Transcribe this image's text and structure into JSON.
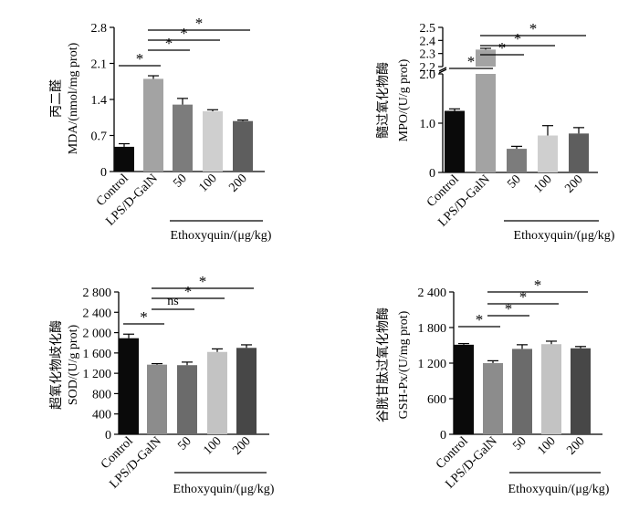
{
  "chart_data": [
    {
      "type": "bar",
      "ylabel_lines": [
        "丙二醛",
        "MDA/(nmol/mg prot)"
      ],
      "categories": [
        "Control",
        "LPS/D-GalN",
        "50",
        "100",
        "200"
      ],
      "group_label": "Ethoxyquin/(μg/kg)",
      "values": [
        0.48,
        1.8,
        1.3,
        1.17,
        0.98
      ],
      "errors": [
        0.06,
        0.06,
        0.12,
        0.03,
        0.02
      ],
      "colors": [
        "#0a0a0a",
        "#a3a3a3",
        "#7c7c7c",
        "#cfcfcf",
        "#5e5e5e"
      ],
      "ylim": [
        0,
        2.8
      ],
      "yticks": [
        0,
        0.7,
        1.4,
        2.1,
        2.8
      ],
      "ytick_labels": [
        "0",
        "0.7",
        "1.4",
        "2.1",
        "2.8"
      ],
      "significance": [
        {
          "from": 0,
          "to": 1,
          "label": "*"
        },
        {
          "from": 1,
          "to": 2,
          "label": "*"
        },
        {
          "from": 1,
          "to": 3,
          "label": "*"
        },
        {
          "from": 1,
          "to": 4,
          "label": "*"
        }
      ]
    },
    {
      "type": "bar",
      "ylabel_lines": [
        "髓过氧化物酶",
        "MPO/(U/g prot)"
      ],
      "categories": [
        "Control",
        "LPS/D-GalN",
        "50",
        "100",
        "200"
      ],
      "group_label": "Ethoxyquin/(μg/kg)",
      "values": [
        1.25,
        2.33,
        0.48,
        0.75,
        0.79
      ],
      "errors": [
        0.04,
        0.01,
        0.05,
        0.2,
        0.12
      ],
      "colors": [
        "#0a0a0a",
        "#a3a3a3",
        "#7c7c7c",
        "#cfcfcf",
        "#5e5e5e"
      ],
      "ylim": [
        0,
        2.5
      ],
      "axis_break": [
        2.0,
        2.2
      ],
      "yticks": [
        0,
        1.0,
        2.0,
        2.2,
        2.3,
        2.4,
        2.5
      ],
      "ytick_labels": [
        "0",
        "1.0",
        "2.0",
        "2.2",
        "2.3",
        "2.4",
        "2.5"
      ],
      "significance": [
        {
          "from": 0,
          "to": 1,
          "label": "*"
        },
        {
          "from": 1,
          "to": 2,
          "label": "*"
        },
        {
          "from": 1,
          "to": 3,
          "label": "*"
        },
        {
          "from": 1,
          "to": 4,
          "label": "*"
        }
      ]
    },
    {
      "type": "bar",
      "ylabel_lines": [
        "超氧化物歧化酶",
        "SOD/(U/g prot)"
      ],
      "categories": [
        "Control",
        "LPS/D-GalN",
        "50",
        "100",
        "200"
      ],
      "group_label": "Ethoxyquin/(μg/kg)",
      "values": [
        1890,
        1370,
        1360,
        1620,
        1700
      ],
      "errors": [
        80,
        20,
        60,
        60,
        60
      ],
      "colors": [
        "#0a0a0a",
        "#8c8c8c",
        "#6b6b6b",
        "#c3c3c3",
        "#474747"
      ],
      "ylim": [
        0,
        2800
      ],
      "yticks": [
        0,
        400,
        800,
        1200,
        1600,
        2000,
        2400,
        2800
      ],
      "ytick_labels": [
        "0",
        "400",
        "800",
        "1 200",
        "1 600",
        "2 000",
        "2 400",
        "2 800"
      ],
      "significance": [
        {
          "from": 0,
          "to": 1,
          "label": "*"
        },
        {
          "from": 1,
          "to": 2,
          "label": "ns"
        },
        {
          "from": 1,
          "to": 3,
          "label": "*"
        },
        {
          "from": 1,
          "to": 4,
          "label": "*"
        }
      ]
    },
    {
      "type": "bar",
      "ylabel_lines": [
        "谷胱甘肽过氧化物酶",
        "GSH-Px/(U/mg prot)"
      ],
      "categories": [
        "Control",
        "LPS/D-GalN",
        "50",
        "100",
        "200"
      ],
      "group_label": "Ethoxyquin/(μg/kg)",
      "values": [
        1510,
        1200,
        1440,
        1520,
        1450
      ],
      "errors": [
        20,
        40,
        70,
        50,
        30
      ],
      "colors": [
        "#0a0a0a",
        "#8c8c8c",
        "#6b6b6b",
        "#c3c3c3",
        "#474747"
      ],
      "ylim": [
        0,
        2400
      ],
      "yticks": [
        0,
        600,
        1200,
        1800,
        2400
      ],
      "ytick_labels": [
        "0",
        "600",
        "1 200",
        "1 800",
        "2 400"
      ],
      "significance": [
        {
          "from": 0,
          "to": 1,
          "label": "*"
        },
        {
          "from": 1,
          "to": 2,
          "label": "*"
        },
        {
          "from": 1,
          "to": 3,
          "label": "*"
        },
        {
          "from": 1,
          "to": 4,
          "label": "*"
        }
      ]
    }
  ]
}
